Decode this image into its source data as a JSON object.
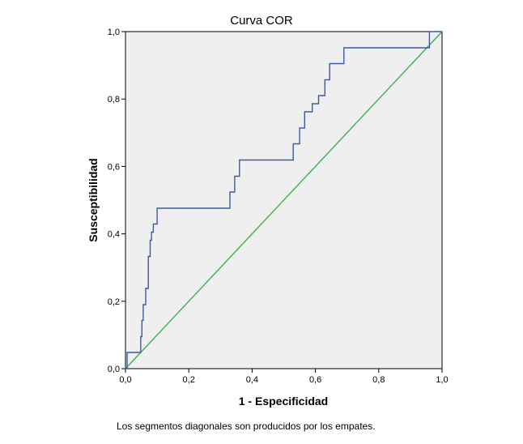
{
  "chart_data": {
    "type": "line",
    "title": "Curva COR",
    "xlabel": "1 - Especificidad",
    "ylabel": "Susceptibilidad",
    "xlim": [
      0,
      1
    ],
    "ylim": [
      0,
      1
    ],
    "xticks": [
      "0,0",
      "0,2",
      "0,4",
      "0,6",
      "0,8",
      "1,0"
    ],
    "yticks": [
      "0,0",
      "0,2",
      "0,4",
      "0,6",
      "0,8",
      "1,0"
    ],
    "grid": false,
    "legend": "none",
    "series": [
      {
        "color": "#3c5aa6",
        "x": [
          0.0,
          0.0,
          0.005,
          0.005,
          0.048,
          0.048,
          0.052,
          0.052,
          0.056,
          0.056,
          0.064,
          0.064,
          0.072,
          0.072,
          0.078,
          0.078,
          0.082,
          0.082,
          0.088,
          0.088,
          0.1,
          0.1,
          0.22,
          0.22,
          0.33,
          0.33,
          0.345,
          0.345,
          0.36,
          0.36,
          0.375,
          0.375,
          0.53,
          0.53,
          0.55,
          0.55,
          0.566,
          0.566,
          0.59,
          0.59,
          0.61,
          0.61,
          0.63,
          0.63,
          0.645,
          0.645,
          0.69,
          0.69,
          0.735,
          0.735,
          0.96,
          0.96,
          1.0
        ],
        "y": [
          0.0,
          0.0,
          0.0,
          0.048,
          0.048,
          0.095,
          0.095,
          0.143,
          0.143,
          0.19,
          0.19,
          0.238,
          0.238,
          0.333,
          0.333,
          0.381,
          0.381,
          0.405,
          0.405,
          0.429,
          0.429,
          0.476,
          0.476,
          0.476,
          0.476,
          0.524,
          0.524,
          0.571,
          0.571,
          0.619,
          0.619,
          0.619,
          0.619,
          0.667,
          0.667,
          0.714,
          0.714,
          0.762,
          0.762,
          0.786,
          0.786,
          0.81,
          0.81,
          0.857,
          0.857,
          0.905,
          0.905,
          0.952,
          0.952,
          0.952,
          0.952,
          1.0,
          1.0
        ]
      },
      {
        "color": "#3cb44b",
        "x": [
          0.0,
          1.0
        ],
        "y": [
          0.0,
          1.0
        ]
      }
    ]
  },
  "footnote": "Los segmentos diagonales son producidos por los empates.",
  "colors": {
    "plot_background": "#efefef",
    "axis": "#000000"
  }
}
